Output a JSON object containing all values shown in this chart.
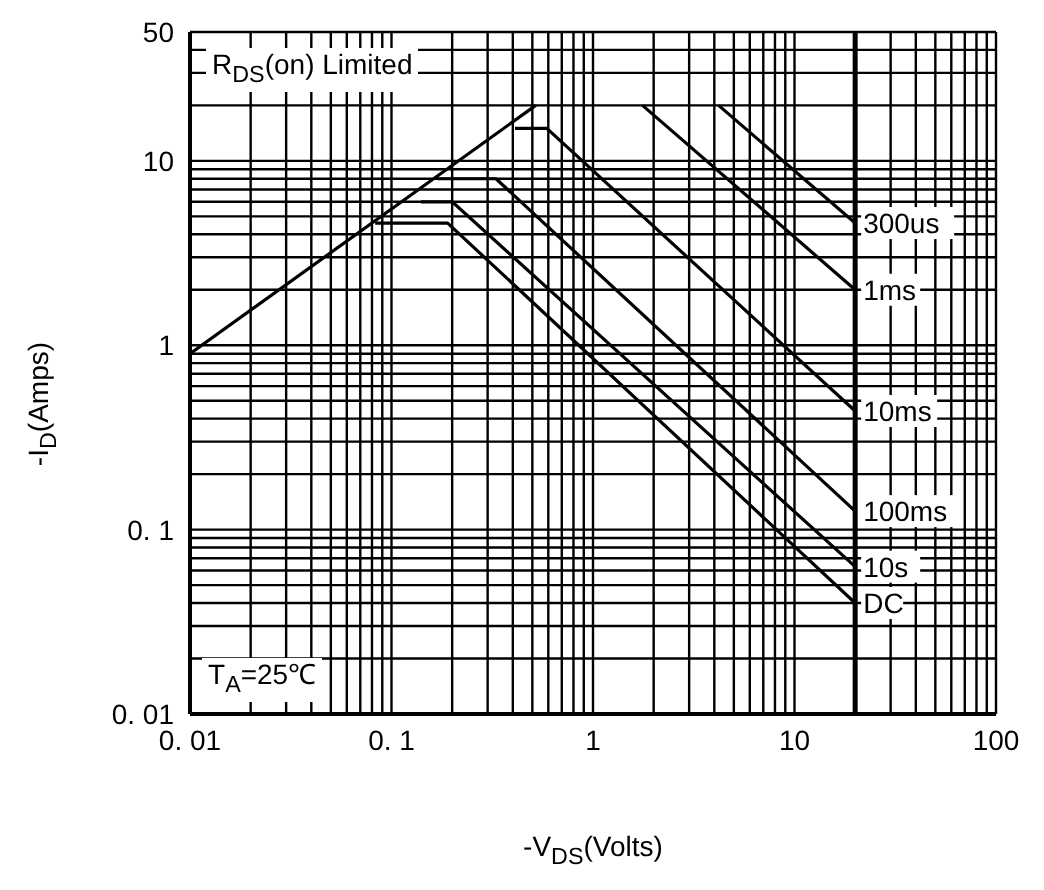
{
  "chart_data": {
    "type": "line",
    "xlabel": "-V$_{DS}$(Volts)",
    "ylabel": "-I$_{D}$(Amps)",
    "log": "xy",
    "grid": true,
    "legend": false,
    "marker": "none",
    "line_style": "solid",
    "xlim": [
      0.01,
      100
    ],
    "ylim": [
      0.01,
      50
    ],
    "xticks": [
      {
        "value": 0.01,
        "label": "0. 01"
      },
      {
        "value": 0.02,
        "label": null
      },
      {
        "value": 0.03,
        "label": null
      },
      {
        "value": 0.04,
        "label": null
      },
      {
        "value": 0.05,
        "label": null
      },
      {
        "value": 0.06,
        "label": null
      },
      {
        "value": 0.07,
        "label": null
      },
      {
        "value": 0.08,
        "label": null
      },
      {
        "value": 0.09,
        "label": null
      },
      {
        "value": 0.1,
        "label": "0. 1"
      },
      {
        "value": 0.2,
        "label": null
      },
      {
        "value": 0.3,
        "label": null
      },
      {
        "value": 0.4,
        "label": null
      },
      {
        "value": 0.5,
        "label": null
      },
      {
        "value": 0.6,
        "label": null
      },
      {
        "value": 0.7,
        "label": null
      },
      {
        "value": 0.8,
        "label": null
      },
      {
        "value": 0.9,
        "label": null
      },
      1,
      {
        "value": 2,
        "label": null
      },
      {
        "value": 3,
        "label": null
      },
      {
        "value": 4,
        "label": null
      },
      {
        "value": 5,
        "label": null
      },
      {
        "value": 6,
        "label": null
      },
      {
        "value": 7,
        "label": null
      },
      {
        "value": 8,
        "label": null
      },
      {
        "value": 9,
        "label": null
      },
      10,
      {
        "value": 20,
        "label": null
      },
      {
        "value": 30,
        "label": null
      },
      {
        "value": 40,
        "label": null
      },
      {
        "value": 50,
        "label": null
      },
      {
        "value": 60,
        "label": null
      },
      {
        "value": 70,
        "label": null
      },
      {
        "value": 80,
        "label": null
      },
      {
        "value": 90,
        "label": null
      },
      100
    ],
    "yticks": [
      {
        "value": 0.01,
        "label": "0. 01"
      },
      {
        "value": 0.02,
        "label": null
      },
      {
        "value": 0.03,
        "label": null
      },
      {
        "value": 0.04,
        "label": null
      },
      {
        "value": 0.05,
        "label": null
      },
      {
        "value": 0.06,
        "label": null
      },
      {
        "value": 0.07,
        "label": null
      },
      {
        "value": 0.08,
        "label": null
      },
      {
        "value": 0.09,
        "label": null
      },
      {
        "value": 0.1,
        "label": "0. 1"
      },
      {
        "value": 0.2,
        "label": null
      },
      {
        "value": 0.3,
        "label": null
      },
      {
        "value": 0.4,
        "label": null
      },
      {
        "value": 0.5,
        "label": null
      },
      {
        "value": 0.6,
        "label": null
      },
      {
        "value": 0.7,
        "label": null
      },
      {
        "value": 0.8,
        "label": null
      },
      {
        "value": 0.9,
        "label": null
      },
      1,
      {
        "value": 2,
        "label": null
      },
      {
        "value": 3,
        "label": null
      },
      {
        "value": 4,
        "label": null
      },
      {
        "value": 5,
        "label": null
      },
      {
        "value": 6,
        "label": null
      },
      {
        "value": 7,
        "label": null
      },
      {
        "value": 8,
        "label": null
      },
      {
        "value": 9,
        "label": null
      },
      10,
      {
        "value": 20,
        "label": null
      },
      {
        "value": 30,
        "label": null
      },
      {
        "value": 40,
        "label": null
      },
      50
    ],
    "ref_lines": [
      {
        "axis": "x",
        "value": 20,
        "color": "#000000"
      }
    ],
    "annotations": [
      "R$_{DS}$(on) Limited",
      "T$_{A}$=25℃"
    ],
    "series": [
      {
        "color": "#000000",
        "x": [
          0.01,
          0.52
        ],
        "values": [
          0.9,
          20
        ]
      },
      {
        "name": "300us",
        "color": "#000000",
        "x": [
          4.2,
          20
        ],
        "values": [
          20,
          4.6
        ]
      },
      {
        "name": "1ms",
        "color": "#000000",
        "x": [
          1.76,
          20
        ],
        "values": [
          20,
          2.0
        ]
      },
      {
        "name": "10ms",
        "color": "#000000",
        "x": [
          0.41,
          0.59,
          20
        ],
        "values": [
          15,
          15,
          0.44
        ]
      },
      {
        "name": "100ms",
        "color": "#000000",
        "x": [
          0.17,
          0.33,
          20
        ],
        "values": [
          8,
          8,
          0.126
        ]
      },
      {
        "name": "10s",
        "color": "#000000",
        "x": [
          0.14,
          0.2,
          20
        ],
        "values": [
          6,
          6,
          0.063
        ]
      },
      {
        "name": "DC",
        "color": "#000000",
        "x": [
          0.083,
          0.19,
          20
        ],
        "values": [
          4.6,
          4.6,
          0.04
        ]
      }
    ]
  }
}
